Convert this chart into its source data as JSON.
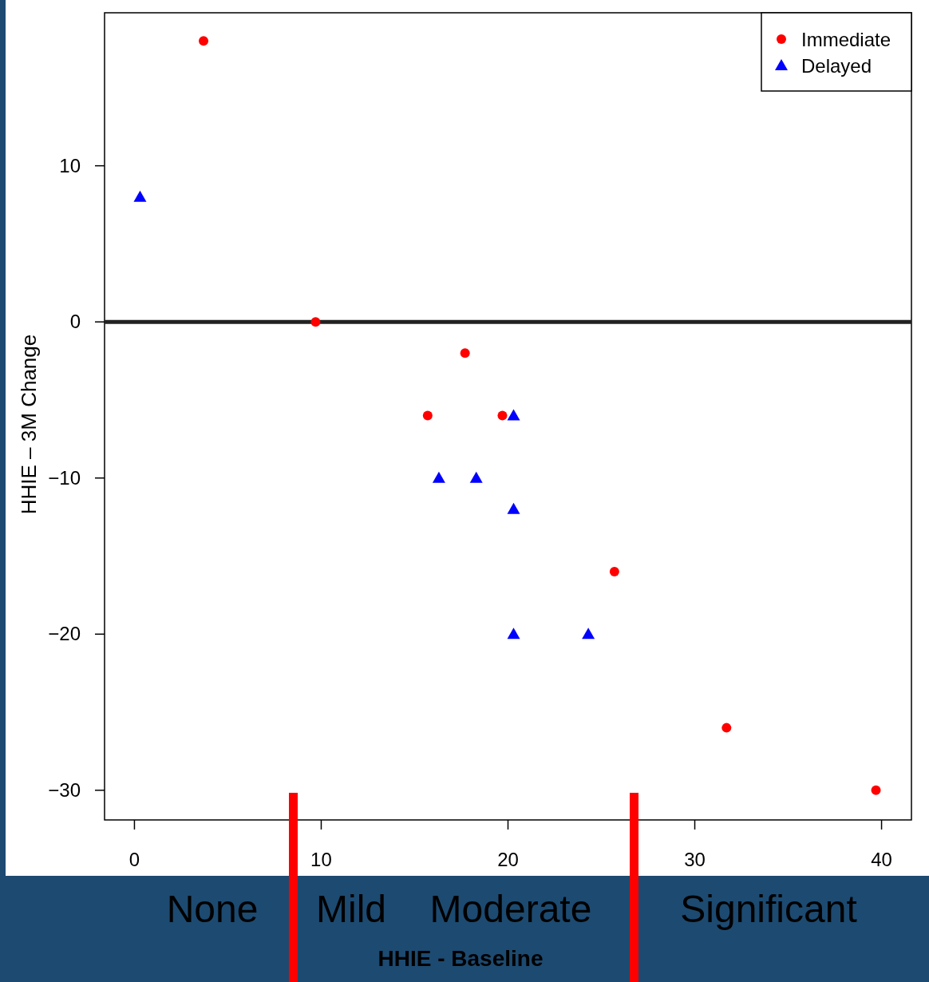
{
  "chart_data": {
    "type": "scatter",
    "xlabel": "HHIE - Baseline",
    "ylabel": "HHIE – 3M Change",
    "xlim": [
      -1.6,
      41.6
    ],
    "ylim": [
      -31.9,
      19.8
    ],
    "xticks": [
      0,
      10,
      20,
      30,
      40
    ],
    "yticks": [
      -30,
      -20,
      -10,
      0,
      10
    ],
    "grid": false,
    "legend": "top right",
    "series": [
      {
        "name": "Immediate",
        "color": "#ff0000",
        "marker": "circle",
        "x": [
          3.7,
          9.7,
          15.7,
          17.7,
          19.7,
          25.7,
          31.7,
          39.7
        ],
        "values": [
          18,
          0,
          -6,
          -2,
          -6,
          -16,
          -26,
          -30
        ]
      },
      {
        "name": "Delayed",
        "color": "#0000ff",
        "marker": "triangle",
        "x": [
          0.3,
          16.3,
          18.3,
          20.3,
          20.3,
          20.3,
          24.3
        ],
        "values": [
          8,
          -10,
          -10,
          -6,
          -12,
          -20,
          -20
        ]
      }
    ],
    "ref_lines": [
      {
        "axis": "y",
        "value": 0,
        "color": "#222222"
      }
    ],
    "annotations": [
      "None",
      "Mild",
      "Moderate",
      "Significant"
    ]
  }
}
